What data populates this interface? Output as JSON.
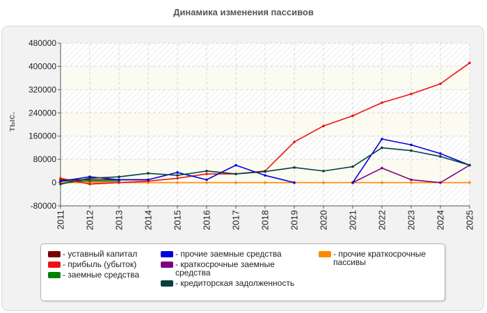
{
  "chart_data": {
    "type": "line",
    "title": "Динамика изменения пассивов",
    "ylabel": "тыс.",
    "xlabel": "",
    "ylim": [
      -80000,
      480000
    ],
    "yticks": [
      -80000,
      0,
      80000,
      160000,
      240000,
      320000,
      400000,
      480000
    ],
    "ytick_labels": [
      "-80000",
      "0",
      "80000",
      "160000",
      "240000",
      "320000",
      "400000",
      "480000"
    ],
    "x": [
      "2011",
      "2012",
      "2013",
      "2014",
      "2015",
      "2016",
      "2017",
      "2018",
      "2019",
      "2020",
      "2021",
      "2022",
      "2023",
      "2024",
      "2025"
    ],
    "grid": true,
    "legend_position": "bottom",
    "series": [
      {
        "name": "- уставный капитал",
        "color": "#7a0000",
        "values": [
          10000,
          10000,
          10000,
          10000,
          null,
          null,
          null,
          null,
          null,
          null,
          null,
          null,
          null,
          null,
          null
        ]
      },
      {
        "name": "- прибыль (убыток)",
        "color": "#ee1111",
        "values": [
          15000,
          -5000,
          0,
          5000,
          15000,
          30000,
          30000,
          40000,
          140000,
          195000,
          230000,
          275000,
          305000,
          340000,
          412000
        ]
      },
      {
        "name": "- заемные средства",
        "color": "#008000",
        "values": [
          5000,
          5000,
          5000,
          null,
          null,
          null,
          null,
          null,
          null,
          null,
          null,
          null,
          null,
          null,
          null
        ]
      },
      {
        "name": "- прочие заемные средства",
        "color": "#0000dd",
        "values": [
          5000,
          20000,
          10000,
          10000,
          35000,
          10000,
          60000,
          25000,
          0,
          null,
          0,
          150000,
          130000,
          100000,
          60000
        ]
      },
      {
        "name": "- краткосрочные заемные средства",
        "color": "#800080",
        "values": [
          null,
          null,
          null,
          null,
          null,
          null,
          null,
          null,
          null,
          null,
          0,
          50000,
          10000,
          0,
          60000
        ]
      },
      {
        "name": "- кредиторская задолженность",
        "color": "#004040",
        "values": [
          -5000,
          15000,
          20000,
          32000,
          25000,
          40000,
          30000,
          38000,
          52000,
          40000,
          55000,
          120000,
          110000,
          90000,
          60000
        ]
      },
      {
        "name": "- прочие краткосрочные пассивы",
        "color": "#ff8800",
        "values": [
          0,
          0,
          0,
          0,
          0,
          0,
          0,
          0,
          0,
          0,
          0,
          0,
          0,
          0,
          0
        ]
      }
    ]
  }
}
